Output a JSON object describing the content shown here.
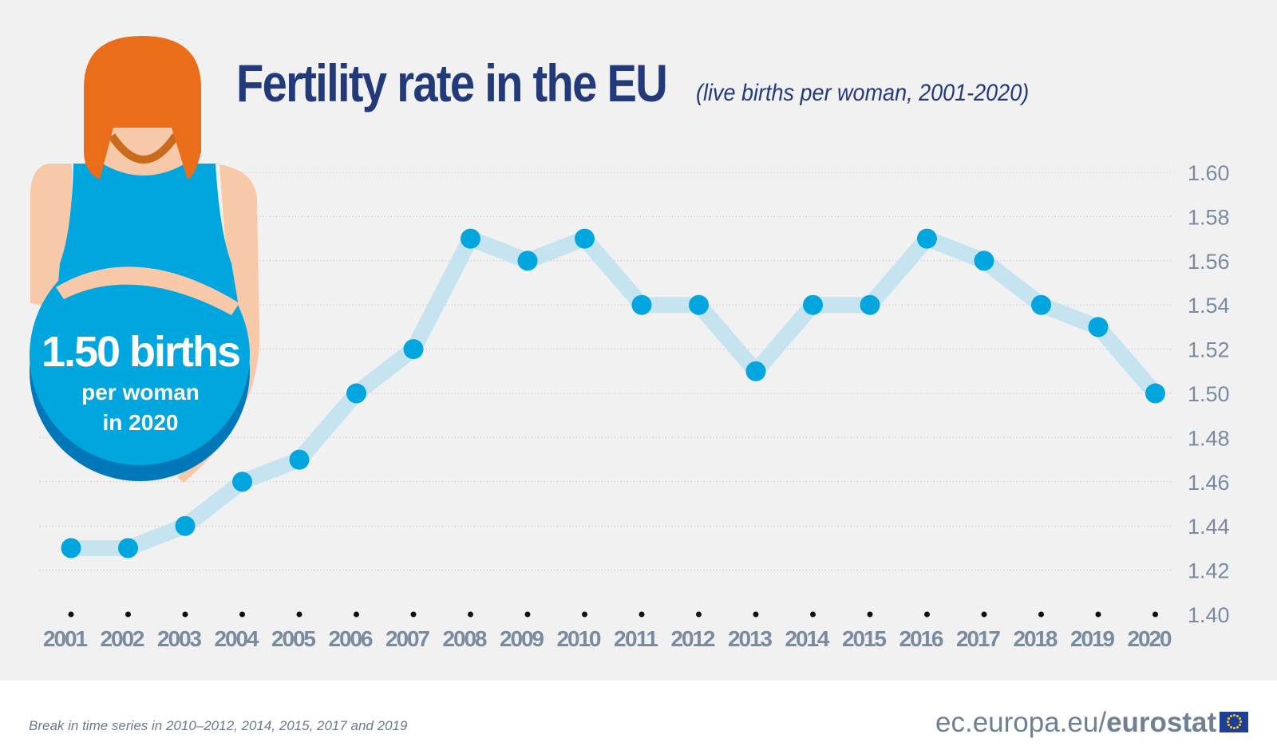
{
  "title": "Fertility rate in the EU",
  "subtitle": "(live births per woman, 2001-2020)",
  "callout": {
    "value": "1.50 births",
    "line2": "per woman",
    "line3": "in 2020"
  },
  "footnote": "Break in time series in 2010–2012, 2014, 2015, 2017 and 2019",
  "logo": {
    "domain": "ec.europa.eu/",
    "brand": "eurostat"
  },
  "colors": {
    "title": "#233a7a",
    "marker": "#00a6dd",
    "line": "#c5e4ef",
    "axis_text": "#7a8ba0"
  },
  "chart_data": {
    "type": "line",
    "title": "Fertility rate in the EU",
    "subtitle": "(live births per woman, 2001-2020)",
    "x": [
      "2001",
      "2002",
      "2003",
      "2004",
      "2005",
      "2006",
      "2007",
      "2008",
      "2009",
      "2010",
      "2011",
      "2012",
      "2013",
      "2014",
      "2015",
      "2016",
      "2017",
      "2018",
      "2019",
      "2020"
    ],
    "values": [
      1.43,
      1.43,
      1.44,
      1.46,
      1.47,
      1.5,
      1.52,
      1.57,
      1.56,
      1.57,
      1.54,
      1.54,
      1.51,
      1.54,
      1.54,
      1.57,
      1.56,
      1.54,
      1.53,
      1.5
    ],
    "ylim": [
      1.4,
      1.6
    ],
    "yticks": [
      "1.40",
      "1.42",
      "1.44",
      "1.46",
      "1.48",
      "1.50",
      "1.52",
      "1.54",
      "1.56",
      "1.58",
      "1.60"
    ],
    "y_axis_side": "right",
    "grid": "dotted horizontal"
  }
}
